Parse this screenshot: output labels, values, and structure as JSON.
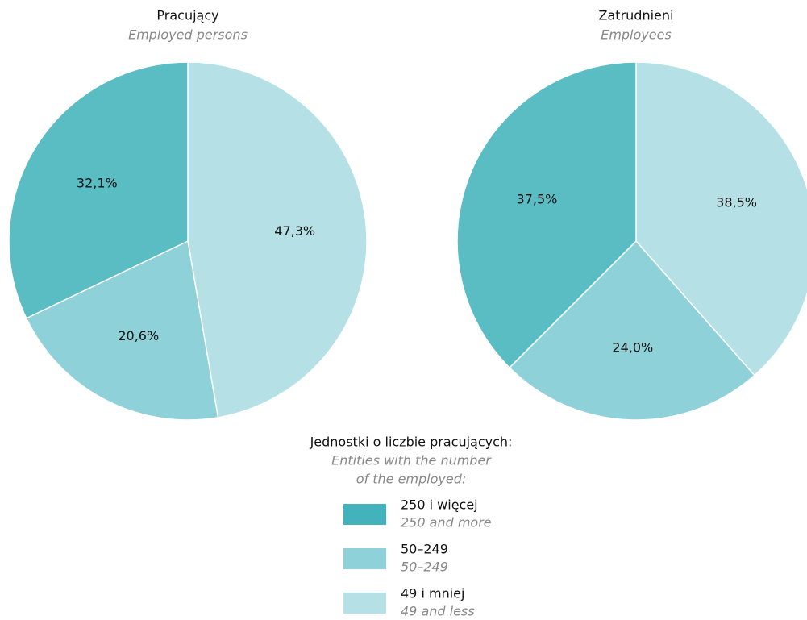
{
  "chart_data": [
    {
      "type": "pie",
      "title": "Pracujący",
      "subtitle": "Employed persons",
      "categories": [
        "250 i więcej",
        "50–249",
        "49 i mniej"
      ],
      "values": [
        32.1,
        20.6,
        47.3
      ],
      "value_labels": [
        "32,1%",
        "20,6%",
        "47,3%"
      ],
      "colors": [
        "#5bbdc4",
        "#8fd1d8",
        "#b5e1e6"
      ]
    },
    {
      "type": "pie",
      "title": "Zatrudnieni",
      "subtitle": "Employees",
      "categories": [
        "250 i więcej",
        "50–249",
        "49 i mniej"
      ],
      "values": [
        37.5,
        24.0,
        38.5
      ],
      "value_labels": [
        "37,5%",
        "24,0%",
        "38,5%"
      ],
      "colors": [
        "#5bbdc4",
        "#8fd1d8",
        "#b5e1e6"
      ]
    }
  ],
  "legend": {
    "title": "Jednostki o liczbie pracujących:",
    "subtitle": [
      "Entities with the number",
      "of the employed:"
    ],
    "translations": [
      "250 and more",
      "50–249",
      "49 and less"
    ],
    "colors": [
      "#43b3bb",
      "#8fd1d8",
      "#b5e1e6"
    ]
  }
}
